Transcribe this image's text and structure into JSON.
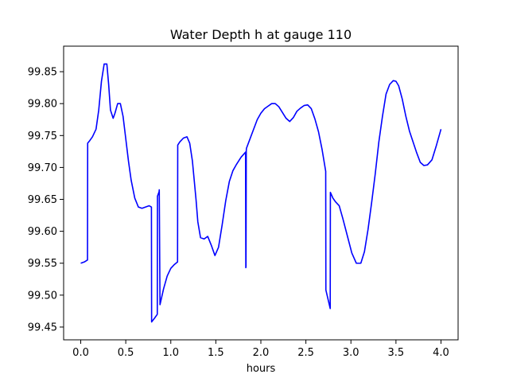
{
  "chart_data": {
    "type": "line",
    "title": "Water Depth h at gauge 110",
    "xlabel": "hours",
    "ylabel": "",
    "xlim": [
      -0.19,
      4.19
    ],
    "ylim": [
      99.43,
      99.89
    ],
    "xticks": [
      0.0,
      0.5,
      1.0,
      1.5,
      2.0,
      2.5,
      3.0,
      3.5,
      4.0
    ],
    "xtick_labels": [
      "0.0",
      "0.5",
      "1.0",
      "1.5",
      "2.0",
      "2.5",
      "3.0",
      "3.5",
      "4.0"
    ],
    "yticks": [
      99.45,
      99.5,
      99.55,
      99.6,
      99.65,
      99.7,
      99.75,
      99.8,
      99.85
    ],
    "ytick_labels": [
      "99.45",
      "99.50",
      "99.55",
      "99.60",
      "99.65",
      "99.70",
      "99.75",
      "99.80",
      "99.85"
    ],
    "grid": false,
    "legend": "none",
    "line_color": "#0000ff",
    "series": [
      {
        "x": [
          0.0,
          0.04,
          0.075,
          0.077,
          0.1,
          0.13,
          0.17,
          0.2,
          0.23,
          0.26,
          0.29,
          0.31,
          0.33,
          0.36,
          0.38,
          0.41,
          0.44,
          0.47,
          0.5,
          0.53,
          0.56,
          0.6,
          0.64,
          0.68,
          0.72,
          0.76,
          0.785,
          0.787,
          0.82,
          0.85,
          0.852,
          0.87,
          0.872,
          0.88,
          0.92,
          0.96,
          1.0,
          1.04,
          1.075,
          1.077,
          1.1,
          1.14,
          1.18,
          1.21,
          1.24,
          1.28,
          1.3,
          1.33,
          1.37,
          1.41,
          1.45,
          1.49,
          1.53,
          1.57,
          1.61,
          1.65,
          1.69,
          1.73,
          1.78,
          1.83,
          1.833,
          1.835,
          1.838,
          1.84,
          1.88,
          1.92,
          1.96,
          2.0,
          2.04,
          2.08,
          2.12,
          2.16,
          2.2,
          2.24,
          2.28,
          2.32,
          2.36,
          2.4,
          2.44,
          2.48,
          2.52,
          2.56,
          2.6,
          2.64,
          2.68,
          2.72,
          2.722,
          2.77,
          2.772,
          2.8,
          2.83,
          2.87,
          2.91,
          2.96,
          3.01,
          3.06,
          3.11,
          3.15,
          3.19,
          3.23,
          3.27,
          3.31,
          3.35,
          3.39,
          3.43,
          3.47,
          3.5,
          3.53,
          3.57,
          3.61,
          3.65,
          3.69,
          3.73,
          3.77,
          3.81,
          3.85,
          3.9,
          3.95,
          4.0
        ],
        "y": [
          99.55,
          99.552,
          99.555,
          99.738,
          99.742,
          99.748,
          99.76,
          99.79,
          99.835,
          99.862,
          99.862,
          99.83,
          99.79,
          99.777,
          99.785,
          99.8,
          99.8,
          99.78,
          99.745,
          99.71,
          99.68,
          99.652,
          99.638,
          99.636,
          99.638,
          99.64,
          99.638,
          99.458,
          99.464,
          99.47,
          99.655,
          99.662,
          99.665,
          99.485,
          99.51,
          99.53,
          99.542,
          99.548,
          99.552,
          99.735,
          99.74,
          99.746,
          99.748,
          99.738,
          99.71,
          99.65,
          99.615,
          99.59,
          99.588,
          99.592,
          99.578,
          99.562,
          99.575,
          99.61,
          99.648,
          99.678,
          99.695,
          99.705,
          99.716,
          99.724,
          99.543,
          99.545,
          99.726,
          99.73,
          99.745,
          99.76,
          99.775,
          99.785,
          99.792,
          99.796,
          99.8,
          99.8,
          99.795,
          99.786,
          99.777,
          99.772,
          99.778,
          99.788,
          99.793,
          99.797,
          99.798,
          99.792,
          99.776,
          99.756,
          99.728,
          99.694,
          99.508,
          99.479,
          99.661,
          99.652,
          99.646,
          99.64,
          99.62,
          99.593,
          99.566,
          99.55,
          99.55,
          99.568,
          99.603,
          99.645,
          99.69,
          99.74,
          99.78,
          99.815,
          99.83,
          99.836,
          99.835,
          99.828,
          99.807,
          99.78,
          99.757,
          99.74,
          99.723,
          99.708,
          99.703,
          99.704,
          99.712,
          99.735,
          99.76
        ]
      }
    ]
  }
}
